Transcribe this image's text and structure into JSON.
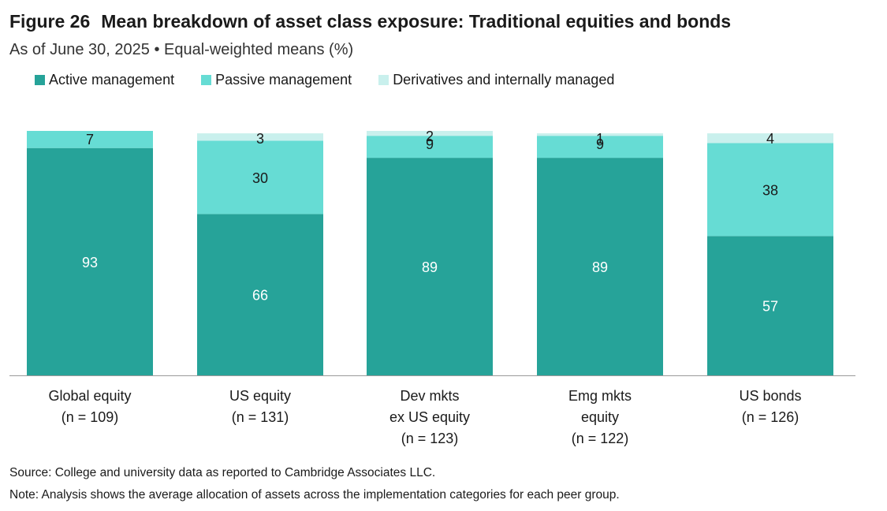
{
  "figure": {
    "number": "Figure 26",
    "title": "Mean breakdown of asset class exposure: Traditional equities and bonds",
    "subtitle": "As of June 30, 2025 • Equal-weighted means (%)"
  },
  "legend": [
    {
      "label": "Active management",
      "color": "#26a399"
    },
    {
      "label": "Passive management",
      "color": "#66dcd4"
    },
    {
      "label": "Derivatives and internally managed",
      "color": "#c9f0ed"
    }
  ],
  "chart_data": {
    "type": "bar",
    "stacked": true,
    "categories": [
      [
        "Global equity",
        "(n = 109)"
      ],
      [
        "US equity",
        "(n = 131)"
      ],
      [
        "Dev mkts",
        "ex US equity",
        "(n = 123)"
      ],
      [
        "Emg mkts",
        "equity",
        "(n = 122)"
      ],
      [
        "US bonds",
        "(n = 126)"
      ]
    ],
    "series": [
      {
        "name": "Active management",
        "values": [
          93,
          66,
          89,
          89,
          57
        ],
        "color": "#26a399",
        "label_color": "#ffffff"
      },
      {
        "name": "Passive management",
        "values": [
          7,
          30,
          9,
          9,
          38
        ],
        "color": "#66dcd4",
        "label_color": "#1a1a1a"
      },
      {
        "name": "Derivatives and internally managed",
        "values": [
          0,
          3,
          2,
          1,
          4
        ],
        "color": "#c9f0ed",
        "label_color": "#1a1a1a"
      }
    ],
    "ylim": [
      0,
      100
    ],
    "title": "Mean breakdown of asset class exposure: Traditional equities and bonds",
    "xlabel": "",
    "ylabel": ""
  },
  "footer": {
    "source": "Source: College and university data as reported to Cambridge Associates LLC.",
    "note": "Note: Analysis shows the average allocation of assets across the implementation categories for each peer group."
  }
}
